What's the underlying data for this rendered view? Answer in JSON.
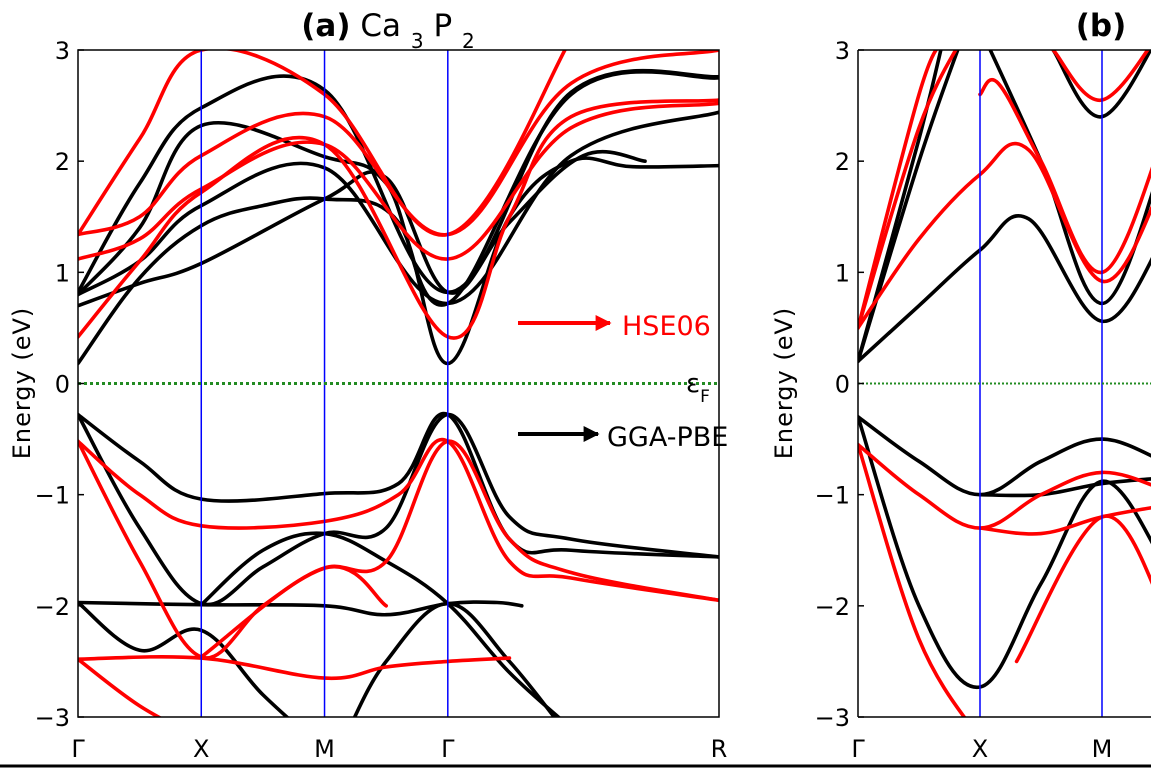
{
  "panels": [
    {
      "id": "a",
      "label": "(a)",
      "material": {
        "base": "Ca",
        "sub1": "3",
        "mid": "P",
        "sub2": "2"
      },
      "ylabel": "Energy (eV)",
      "fermi_label": {
        "main": "ε",
        "sub": "F"
      },
      "annotations": [
        {
          "text": "HSE06",
          "color": "#ff0000"
        },
        {
          "text": "GGA-PBE",
          "color": "#000000"
        }
      ]
    },
    {
      "id": "b",
      "label": "(b)",
      "ylabel": "Energy (eV)"
    }
  ],
  "chart_data": [
    {
      "type": "line",
      "panel": "a",
      "ylim": [
        -3,
        3
      ],
      "yticks": [
        3,
        2,
        1,
        0,
        -1,
        -2,
        -3
      ],
      "ytick_labels": [
        "3",
        "2",
        "1",
        "0",
        "−1",
        "−2",
        "−3"
      ],
      "kpath": [
        "Γ",
        "X",
        "M",
        "Γ",
        "R"
      ],
      "kpos": [
        0,
        1,
        2,
        3,
        5.2
      ],
      "fermi_level": 0,
      "colors": {
        "hse06": "#ff0000",
        "gga_pbe": "#000000",
        "kline": "#0000ff",
        "fermi": "#228b22"
      },
      "series": [
        {
          "method": "gga_pbe",
          "points": [
            [
              0,
              -0.28
            ],
            [
              0.5,
              -0.7
            ],
            [
              1,
              -1.04
            ],
            [
              2,
              -0.99
            ],
            [
              2.6,
              -0.9
            ],
            [
              3,
              -0.28
            ],
            [
              3.5,
              -1.4
            ],
            [
              4,
              -1.5
            ],
            [
              5.2,
              -1.56
            ]
          ]
        },
        {
          "method": "gga_pbe",
          "points": [
            [
              0,
              -0.28
            ],
            [
              0.5,
              -1.3
            ],
            [
              1,
              -1.98
            ],
            [
              1.5,
              -1.65
            ],
            [
              2,
              -1.35
            ],
            [
              2.5,
              -1.3
            ],
            [
              3,
              -0.28
            ],
            [
              3.5,
              -1.2
            ],
            [
              4,
              -1.4
            ],
            [
              5.2,
              -1.56
            ]
          ]
        },
        {
          "method": "gga_pbe",
          "points": [
            [
              0,
              -1.97
            ],
            [
              1,
              -1.99
            ],
            [
              2,
              -2.0
            ],
            [
              2.5,
              -2.08
            ],
            [
              3,
              -1.98
            ],
            [
              3.4,
              -1.97
            ],
            [
              3.6,
              -2.0
            ]
          ]
        },
        {
          "method": "gga_pbe",
          "points": [
            [
              0,
              -1.97
            ],
            [
              0.5,
              -2.4
            ],
            [
              1,
              -2.22
            ],
            [
              1.5,
              -2.8
            ],
            [
              2,
              -3.3
            ]
          ]
        },
        {
          "method": "gga_pbe",
          "points": [
            [
              1,
              -1.99
            ],
            [
              1.5,
              -1.5
            ],
            [
              2,
              -1.35
            ],
            [
              2.5,
              -1.6
            ],
            [
              3,
              -1.98
            ],
            [
              3.5,
              -2.6
            ],
            [
              4,
              -3.1
            ]
          ]
        },
        {
          "method": "gga_pbe",
          "points": [
            [
              2.2,
              -3.1
            ],
            [
              2.5,
              -2.5
            ],
            [
              3,
              -1.98
            ],
            [
              3.5,
              -2.5
            ],
            [
              4,
              -3.2
            ]
          ]
        },
        {
          "method": "gga_pbe",
          "points": [
            [
              0,
              0.18
            ],
            [
              0.5,
              0.95
            ],
            [
              1,
              1.42
            ],
            [
              1.5,
              1.6
            ],
            [
              2,
              1.66
            ],
            [
              2.6,
              1.45
            ],
            [
              3,
              0.18
            ],
            [
              3.5,
              1.5
            ],
            [
              4,
              2.0
            ],
            [
              4.5,
              1.95
            ],
            [
              5.2,
              1.96
            ]
          ]
        },
        {
          "method": "gga_pbe",
          "points": [
            [
              0,
              0.7
            ],
            [
              0.5,
              0.9
            ],
            [
              1,
              1.08
            ],
            [
              2,
              1.66
            ],
            [
              2.5,
              1.85
            ],
            [
              3,
              0.82
            ],
            [
              3.5,
              1.45
            ],
            [
              4.1,
              2.05
            ],
            [
              4.6,
              2.0
            ]
          ]
        },
        {
          "method": "gga_pbe",
          "points": [
            [
              0,
              0.8
            ],
            [
              0.5,
              1.1
            ],
            [
              1,
              1.6
            ],
            [
              2,
              1.94
            ],
            [
              3,
              0.72
            ],
            [
              4,
              2.05
            ],
            [
              5.2,
              2.44
            ]
          ]
        },
        {
          "method": "gga_pbe",
          "points": [
            [
              0,
              0.8
            ],
            [
              0.5,
              1.4
            ],
            [
              1,
              2.32
            ],
            [
              2,
              2.04
            ],
            [
              2.5,
              1.8
            ],
            [
              3,
              0.72
            ],
            [
              4,
              2.6
            ],
            [
              5.2,
              2.75
            ]
          ]
        },
        {
          "method": "gga_pbe",
          "points": [
            [
              0,
              0.82
            ],
            [
              0.5,
              1.8
            ],
            [
              1,
              2.48
            ],
            [
              2,
              2.64
            ],
            [
              3,
              0.82
            ],
            [
              4,
              2.62
            ],
            [
              5.2,
              2.76
            ]
          ]
        },
        {
          "method": "hse06",
          "points": [
            [
              0,
              -0.52
            ],
            [
              0.5,
              -1.0
            ],
            [
              1,
              -1.28
            ],
            [
              2,
              -1.24
            ],
            [
              2.6,
              -1.0
            ],
            [
              3,
              -0.52
            ],
            [
              3.5,
              -1.6
            ],
            [
              4,
              -1.75
            ],
            [
              5.2,
              -1.95
            ]
          ]
        },
        {
          "method": "hse06",
          "points": [
            [
              0,
              -0.52
            ],
            [
              0.5,
              -1.6
            ],
            [
              1,
              -2.46
            ],
            [
              1.5,
              -2.0
            ],
            [
              2,
              -1.66
            ],
            [
              2.5,
              -1.6
            ],
            [
              3,
              -0.52
            ],
            [
              3.5,
              -1.4
            ],
            [
              4,
              -1.7
            ],
            [
              5.2,
              -1.95
            ]
          ]
        },
        {
          "method": "hse06",
          "points": [
            [
              0,
              -2.48
            ],
            [
              1,
              -2.47
            ],
            [
              2,
              -2.65
            ],
            [
              2.5,
              -2.55
            ],
            [
              3,
              -2.5
            ],
            [
              3.5,
              -2.47
            ]
          ]
        },
        {
          "method": "hse06",
          "points": [
            [
              0,
              -2.48
            ],
            [
              0.5,
              -2.9
            ],
            [
              1,
              -3.2
            ]
          ]
        },
        {
          "method": "hse06",
          "points": [
            [
              1,
              -2.46
            ],
            [
              2,
              -1.66
            ],
            [
              2.5,
              -2.0
            ]
          ]
        },
        {
          "method": "hse06",
          "points": [
            [
              0,
              0.42
            ],
            [
              0.5,
              1.1
            ],
            [
              1,
              1.72
            ],
            [
              2,
              2.15
            ],
            [
              3,
              0.42
            ],
            [
              3.5,
              1.5
            ],
            [
              4,
              2.4
            ],
            [
              5.2,
              2.55
            ]
          ]
        },
        {
          "method": "hse06",
          "points": [
            [
              0,
              1.12
            ],
            [
              0.5,
              1.3
            ],
            [
              1,
              1.75
            ],
            [
              2,
              2.15
            ],
            [
              3,
              1.12
            ],
            [
              4,
              2.3
            ],
            [
              5.2,
              2.52
            ]
          ]
        },
        {
          "method": "hse06",
          "points": [
            [
              0,
              1.34
            ],
            [
              0.5,
              1.5
            ],
            [
              1,
              2.05
            ],
            [
              2,
              2.4
            ],
            [
              3,
              1.34
            ],
            [
              4,
              2.7
            ],
            [
              5.2,
              3.0
            ]
          ]
        },
        {
          "method": "hse06",
          "points": [
            [
              0,
              1.34
            ],
            [
              0.5,
              2.2
            ],
            [
              1,
              3.0
            ],
            [
              2,
              2.6
            ],
            [
              3,
              1.34
            ],
            [
              4,
              3.1
            ]
          ]
        }
      ]
    },
    {
      "type": "line",
      "panel": "b",
      "ylim": [
        -3,
        3
      ],
      "yticks": [
        3,
        2,
        1,
        0,
        -1,
        -2,
        -3
      ],
      "ytick_labels": [
        "3",
        "2",
        "1",
        "0",
        "−1",
        "−2",
        "−3"
      ],
      "kpath": [
        "Γ",
        "X",
        "M"
      ],
      "kpos": [
        0,
        1,
        2
      ],
      "fermi_level": 0,
      "colors": {
        "hse06": "#ff0000",
        "gga_pbe": "#000000",
        "kline": "#0000ff",
        "fermi": "#228b22"
      },
      "series": [
        {
          "method": "gga_pbe",
          "points": [
            [
              0,
              -0.3
            ],
            [
              0.5,
              -0.7
            ],
            [
              1,
              -1.0
            ],
            [
              1.5,
              -0.7
            ],
            [
              2,
              -0.5
            ],
            [
              2.5,
              -0.7
            ]
          ]
        },
        {
          "method": "gga_pbe",
          "points": [
            [
              0,
              -0.3
            ],
            [
              0.5,
              -2.0
            ],
            [
              1,
              -2.73
            ],
            [
              1.5,
              -1.8
            ],
            [
              2,
              -0.88
            ],
            [
              2.5,
              -1.6
            ]
          ]
        },
        {
          "method": "gga_pbe",
          "points": [
            [
              1,
              -1.0
            ],
            [
              1.5,
              -1.0
            ],
            [
              2,
              -0.9
            ],
            [
              2.5,
              -0.85
            ]
          ]
        },
        {
          "method": "gga_pbe",
          "points": [
            [
              0,
              0.2
            ],
            [
              0.5,
              0.7
            ],
            [
              1,
              1.2
            ],
            [
              1.4,
              1.48
            ],
            [
              2,
              0.56
            ],
            [
              2.5,
              1.3
            ]
          ]
        },
        {
          "method": "gga_pbe",
          "points": [
            [
              0,
              0.2
            ],
            [
              0.5,
              2.0
            ],
            [
              0.85,
              3.1
            ]
          ]
        },
        {
          "method": "gga_pbe",
          "points": [
            [
              0,
              0.2
            ],
            [
              0.5,
              2.2
            ],
            [
              0.7,
              3.1
            ]
          ]
        },
        {
          "method": "gga_pbe",
          "points": [
            [
              1.6,
              3.0
            ],
            [
              2,
              2.4
            ],
            [
              2.5,
              3.2
            ]
          ]
        },
        {
          "method": "gga_pbe",
          "points": [
            [
              1,
              3.2
            ],
            [
              1.5,
              2.0
            ],
            [
              2,
              0.72
            ],
            [
              2.5,
              2.0
            ]
          ]
        },
        {
          "method": "hse06",
          "points": [
            [
              0,
              -0.55
            ],
            [
              0.5,
              -1.0
            ],
            [
              1,
              -1.3
            ],
            [
              1.5,
              -1.0
            ],
            [
              2,
              -0.8
            ],
            [
              2.5,
              -0.95
            ]
          ]
        },
        {
          "method": "hse06",
          "points": [
            [
              0,
              -0.55
            ],
            [
              0.5,
              -2.3
            ],
            [
              1,
              -3.2
            ]
          ]
        },
        {
          "method": "hse06",
          "points": [
            [
              1,
              -1.3
            ],
            [
              1.5,
              -1.35
            ],
            [
              2,
              -1.2
            ],
            [
              2.5,
              -1.1
            ]
          ]
        },
        {
          "method": "hse06",
          "points": [
            [
              1.3,
              -2.5
            ],
            [
              2,
              -1.2
            ],
            [
              2.5,
              -2.0
            ]
          ]
        },
        {
          "method": "hse06",
          "points": [
            [
              0,
              0.5
            ],
            [
              0.5,
              1.3
            ],
            [
              1,
              1.88
            ],
            [
              1.4,
              2.1
            ],
            [
              2,
              0.92
            ],
            [
              2.5,
              1.8
            ]
          ]
        },
        {
          "method": "hse06",
          "points": [
            [
              0,
              0.5
            ],
            [
              0.5,
              2.3
            ],
            [
              0.85,
              3.1
            ]
          ]
        },
        {
          "method": "hse06",
          "points": [
            [
              0,
              0.5
            ],
            [
              0.5,
              2.6
            ],
            [
              0.7,
              3.1
            ]
          ]
        },
        {
          "method": "hse06",
          "points": [
            [
              1,
              2.6
            ],
            [
              1.15,
              2.7
            ],
            [
              1.5,
              2.0
            ],
            [
              2,
              1.0
            ],
            [
              2.5,
              2.2
            ]
          ]
        },
        {
          "method": "hse06",
          "points": [
            [
              1.6,
              3.0
            ],
            [
              2,
              2.55
            ],
            [
              2.5,
              3.2
            ]
          ]
        }
      ]
    }
  ]
}
